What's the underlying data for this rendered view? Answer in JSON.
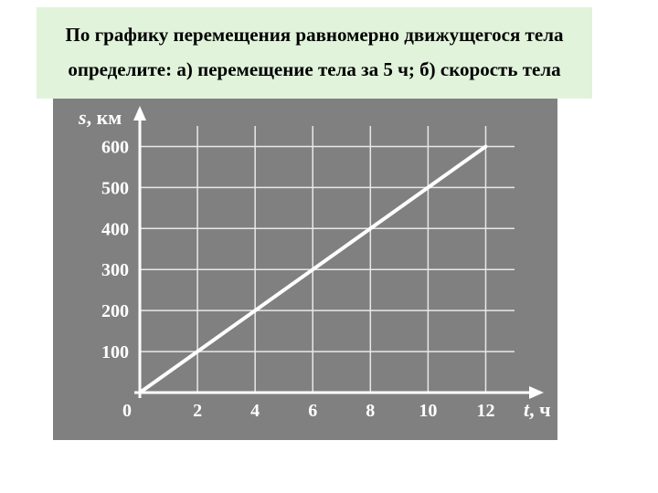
{
  "question": {
    "background_color": "#e1f3db",
    "text_color": "#000000",
    "fontsize": 21,
    "line1": "По графику перемещения равномерно движущегося тела",
    "line2": "определите: а) перемещение тела за 5 ч; б) скорость тела"
  },
  "chart": {
    "type": "line",
    "background_color": "#808080",
    "grid_color": "#e8e8e8",
    "line_color": "#ffffff",
    "text_color": "#ffffff",
    "axis_color": "#ffffff",
    "line_width": 4,
    "grid_width": 1.5,
    "axis_width": 3,
    "label_fontsize": 20,
    "tick_fontsize": 20,
    "axis_label_fontsize": 22,
    "x_axis": {
      "label": "t, ч",
      "min": 0,
      "max": 13,
      "ticks": [
        2,
        4,
        6,
        8,
        10,
        12
      ],
      "tick_labels": [
        "2",
        "4",
        "6",
        "8",
        "10",
        "12"
      ]
    },
    "y_axis": {
      "label": "s, км",
      "min": 0,
      "max": 650,
      "ticks": [
        100,
        200,
        300,
        400,
        500,
        600
      ],
      "tick_labels": [
        "100",
        "200",
        "300",
        "400",
        "500",
        "600"
      ]
    },
    "origin_label": "0",
    "data": {
      "x": [
        0,
        12
      ],
      "y": [
        0,
        600
      ]
    }
  }
}
